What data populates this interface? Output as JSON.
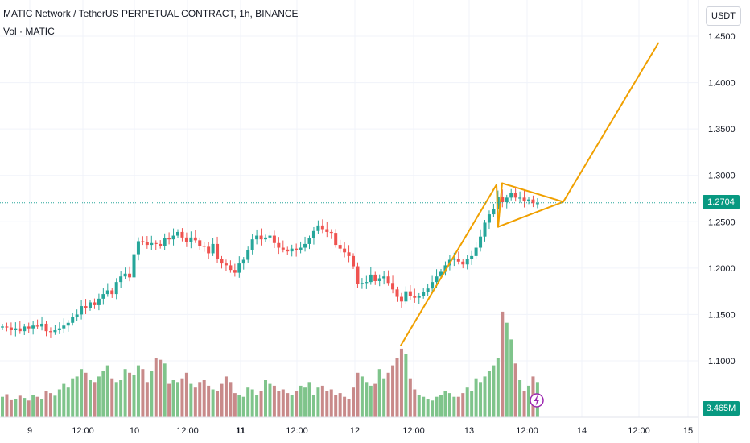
{
  "header": {
    "title": "MATIC Network / TetherUS PERPETUAL CONTRACT, 1h, BINANCE",
    "volume_label": "Vol · MATIC",
    "currency": "USDT"
  },
  "colors": {
    "up": "#26a69a",
    "down": "#ef5350",
    "vol_up": "#7fc48b",
    "vol_down": "#c88a8a",
    "pattern": "#f0a000",
    "grid": "#f0f3fa",
    "axis_text": "#131722",
    "last_price_bg": "#089981",
    "last_price_line": "#26a69a",
    "bolt": "#9c27b0"
  },
  "chart_data": {
    "type": "candlestick",
    "symbol": "MATICUSDT.P",
    "interval": "1h",
    "last_price": "1.2704",
    "last_volume": "3.465M",
    "y_axis": {
      "ticks": [
        "1.1000",
        "1.1500",
        "1.2000",
        "1.2500",
        "1.3000",
        "1.3500",
        "1.4000",
        "1.4500"
      ],
      "range": [
        1.06,
        1.47
      ]
    },
    "x_axis": {
      "labels": [
        {
          "text": "9",
          "bold": false
        },
        {
          "text": "12:00",
          "bold": false
        },
        {
          "text": "10",
          "bold": false
        },
        {
          "text": "12:00",
          "bold": false
        },
        {
          "text": "11",
          "bold": true
        },
        {
          "text": "12:00",
          "bold": false
        },
        {
          "text": "12",
          "bold": false
        },
        {
          "text": "12:00",
          "bold": false
        },
        {
          "text": "13",
          "bold": false
        },
        {
          "text": "12:00",
          "bold": false
        },
        {
          "text": "14",
          "bold": false
        },
        {
          "text": "12:00",
          "bold": false
        },
        {
          "text": "15",
          "bold": false
        }
      ]
    },
    "closes": [
      1.137,
      1.136,
      1.133,
      1.135,
      1.132,
      1.137,
      1.135,
      1.138,
      1.137,
      1.14,
      1.132,
      1.131,
      1.133,
      1.135,
      1.138,
      1.141,
      1.147,
      1.15,
      1.159,
      1.157,
      1.163,
      1.16,
      1.167,
      1.172,
      1.176,
      1.172,
      1.185,
      1.191,
      1.194,
      1.19,
      1.215,
      1.229,
      1.228,
      1.225,
      1.227,
      1.226,
      1.224,
      1.232,
      1.231,
      1.235,
      1.239,
      1.233,
      1.228,
      1.233,
      1.23,
      1.224,
      1.223,
      1.216,
      1.226,
      1.21,
      1.205,
      1.203,
      1.198,
      1.195,
      1.205,
      1.209,
      1.219,
      1.231,
      1.235,
      1.231,
      1.233,
      1.235,
      1.227,
      1.222,
      1.22,
      1.218,
      1.221,
      1.219,
      1.222,
      1.226,
      1.232,
      1.24,
      1.246,
      1.242,
      1.239,
      1.238,
      1.225,
      1.221,
      1.217,
      1.213,
      1.202,
      1.183,
      1.184,
      1.185,
      1.193,
      1.186,
      1.189,
      1.191,
      1.184,
      1.177,
      1.169,
      1.164,
      1.175,
      1.17,
      1.168,
      1.17,
      1.174,
      1.178,
      1.185,
      1.191,
      1.196,
      1.203,
      1.209,
      1.21,
      1.207,
      1.204,
      1.21,
      1.213,
      1.222,
      1.234,
      1.249,
      1.258,
      1.264,
      1.277,
      1.271,
      1.276,
      1.281,
      1.276,
      1.276,
      1.272,
      1.274,
      1.27,
      1.27
    ],
    "volumes": [
      0.55,
      0.62,
      0.48,
      0.5,
      0.58,
      0.52,
      0.45,
      0.6,
      0.55,
      0.5,
      0.7,
      0.65,
      0.58,
      0.75,
      0.9,
      0.8,
      1.05,
      1.1,
      1.3,
      1.2,
      1.0,
      0.95,
      1.1,
      1.25,
      1.4,
      1.05,
      0.95,
      1.0,
      1.3,
      1.2,
      1.15,
      1.4,
      1.3,
      0.95,
      1.25,
      1.6,
      1.55,
      1.45,
      0.9,
      1.0,
      0.95,
      1.05,
      1.2,
      0.9,
      0.8,
      0.95,
      1.0,
      0.85,
      0.75,
      0.7,
      0.9,
      1.1,
      0.95,
      0.65,
      0.6,
      0.55,
      0.8,
      0.75,
      0.6,
      0.7,
      1.0,
      0.9,
      0.85,
      0.7,
      0.75,
      0.65,
      0.6,
      0.7,
      0.85,
      0.8,
      0.95,
      0.6,
      0.8,
      0.85,
      0.7,
      0.75,
      0.6,
      0.65,
      0.55,
      0.5,
      0.8,
      1.2,
      1.1,
      0.95,
      0.85,
      0.9,
      1.3,
      1.05,
      1.2,
      1.4,
      1.6,
      1.85,
      1.7,
      1.05,
      0.75,
      0.6,
      0.55,
      0.5,
      0.45,
      0.55,
      0.6,
      0.7,
      0.65,
      0.55,
      0.55,
      0.65,
      0.8,
      0.7,
      1.05,
      0.95,
      1.1,
      1.25,
      1.4,
      1.6,
      2.85,
      2.55,
      2.1,
      1.45,
      1.0,
      0.7,
      0.85,
      1.1,
      0.95
    ],
    "pattern_lines": {
      "flagpole": [
        [
          1.1165,
          0
        ],
        [
          1.29,
          0
        ]
      ],
      "pennant_top_price": 1.2915,
      "pennant_bottom_price": 1.2445,
      "apex_price": 1.2715,
      "target_price": 1.4425
    }
  }
}
